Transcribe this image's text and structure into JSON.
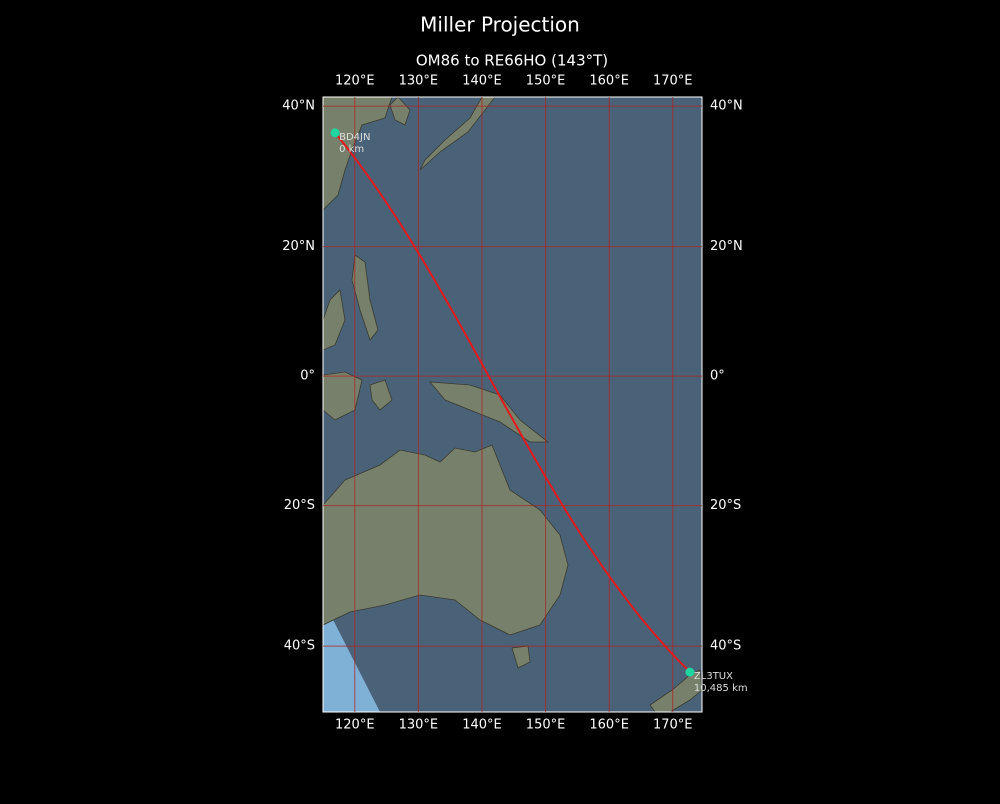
{
  "chart_data": {
    "type": "map",
    "title": "Miller Projection",
    "subtitle": "OM86 to RE66HO (143°T)",
    "projection": "miller",
    "xlim": [
      115,
      174.6
    ],
    "ylim": [
      -48.4,
      41.2
    ],
    "xticks": [
      {
        "value": 120,
        "label": "120°E"
      },
      {
        "value": 130,
        "label": "130°E"
      },
      {
        "value": 140,
        "label": "140°E"
      },
      {
        "value": 150,
        "label": "150°E"
      },
      {
        "value": 160,
        "label": "160°E"
      },
      {
        "value": 170,
        "label": "170°E"
      }
    ],
    "yticks": [
      {
        "value": 40,
        "label": "40°N"
      },
      {
        "value": 20,
        "label": "20°N"
      },
      {
        "value": 0,
        "label": "0°"
      },
      {
        "value": -20,
        "label": "20°S"
      },
      {
        "value": -40,
        "label": "40°S"
      }
    ],
    "grid": true,
    "route_color": "#e31a1c",
    "point_color": "#1fd6a0",
    "points": [
      {
        "name": "BD4JN",
        "lon": 116.9,
        "lat": 36.4,
        "distance_km": 0,
        "distance_label": "0 km"
      },
      {
        "name": "ZL3TUX",
        "lon": 172.7,
        "lat": -43.4,
        "distance_km": 10485,
        "distance_label": "10,485 km"
      }
    ]
  }
}
